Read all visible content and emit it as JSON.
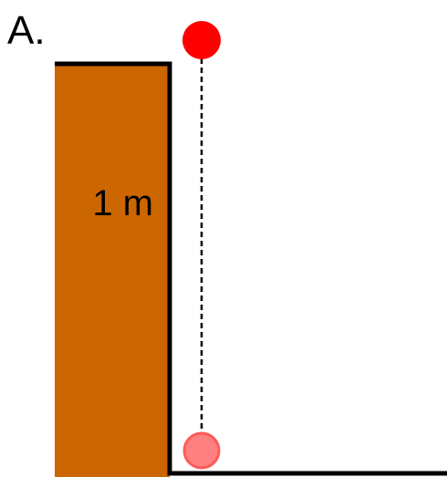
{
  "label": "A.",
  "height_label": "1 m"
}
